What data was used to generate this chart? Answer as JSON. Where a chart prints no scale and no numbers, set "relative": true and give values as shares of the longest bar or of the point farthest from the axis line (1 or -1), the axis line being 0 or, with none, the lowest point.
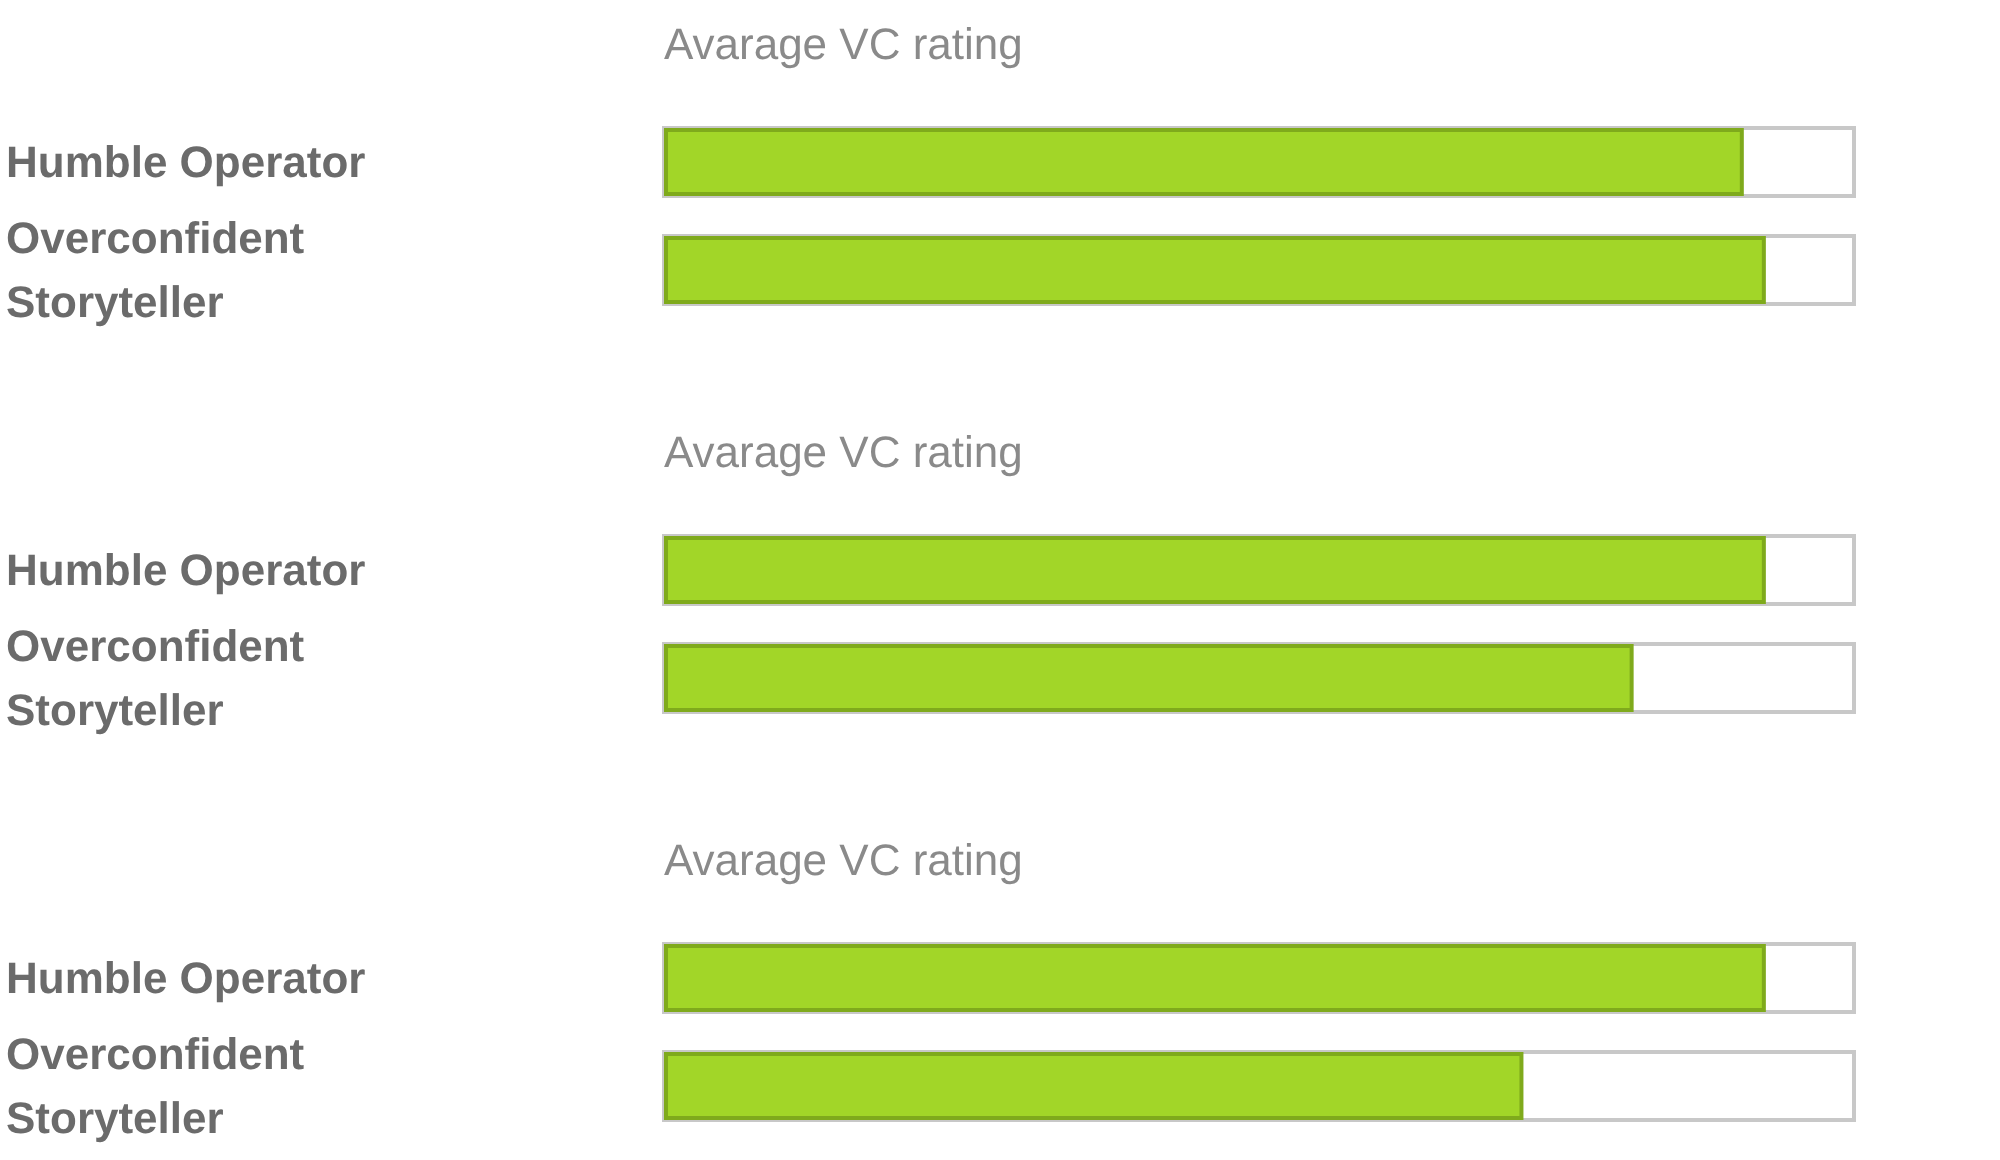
{
  "chart_data": [
    {
      "type": "bar",
      "orientation": "horizontal",
      "relative": true,
      "title": "Avarage VC rating",
      "categories": [
        "Humble Operator",
        "Overconfident Storyteller"
      ],
      "values": [
        0.98,
        1
      ],
      "color": "#a2d628"
    },
    {
      "type": "bar",
      "orientation": "horizontal",
      "relative": true,
      "title": "Avarage VC rating",
      "categories": [
        "Humble Operator",
        "Overconfident Storyteller"
      ],
      "values": [
        1,
        0.88
      ],
      "color": "#a2d628"
    },
    {
      "type": "bar",
      "orientation": "horizontal",
      "relative": true,
      "title": "Avarage VC rating",
      "categories": [
        "Humble Operator",
        "Overconfident Storyteller"
      ],
      "values": [
        1,
        0.78
      ],
      "color": "#a2d628"
    }
  ]
}
